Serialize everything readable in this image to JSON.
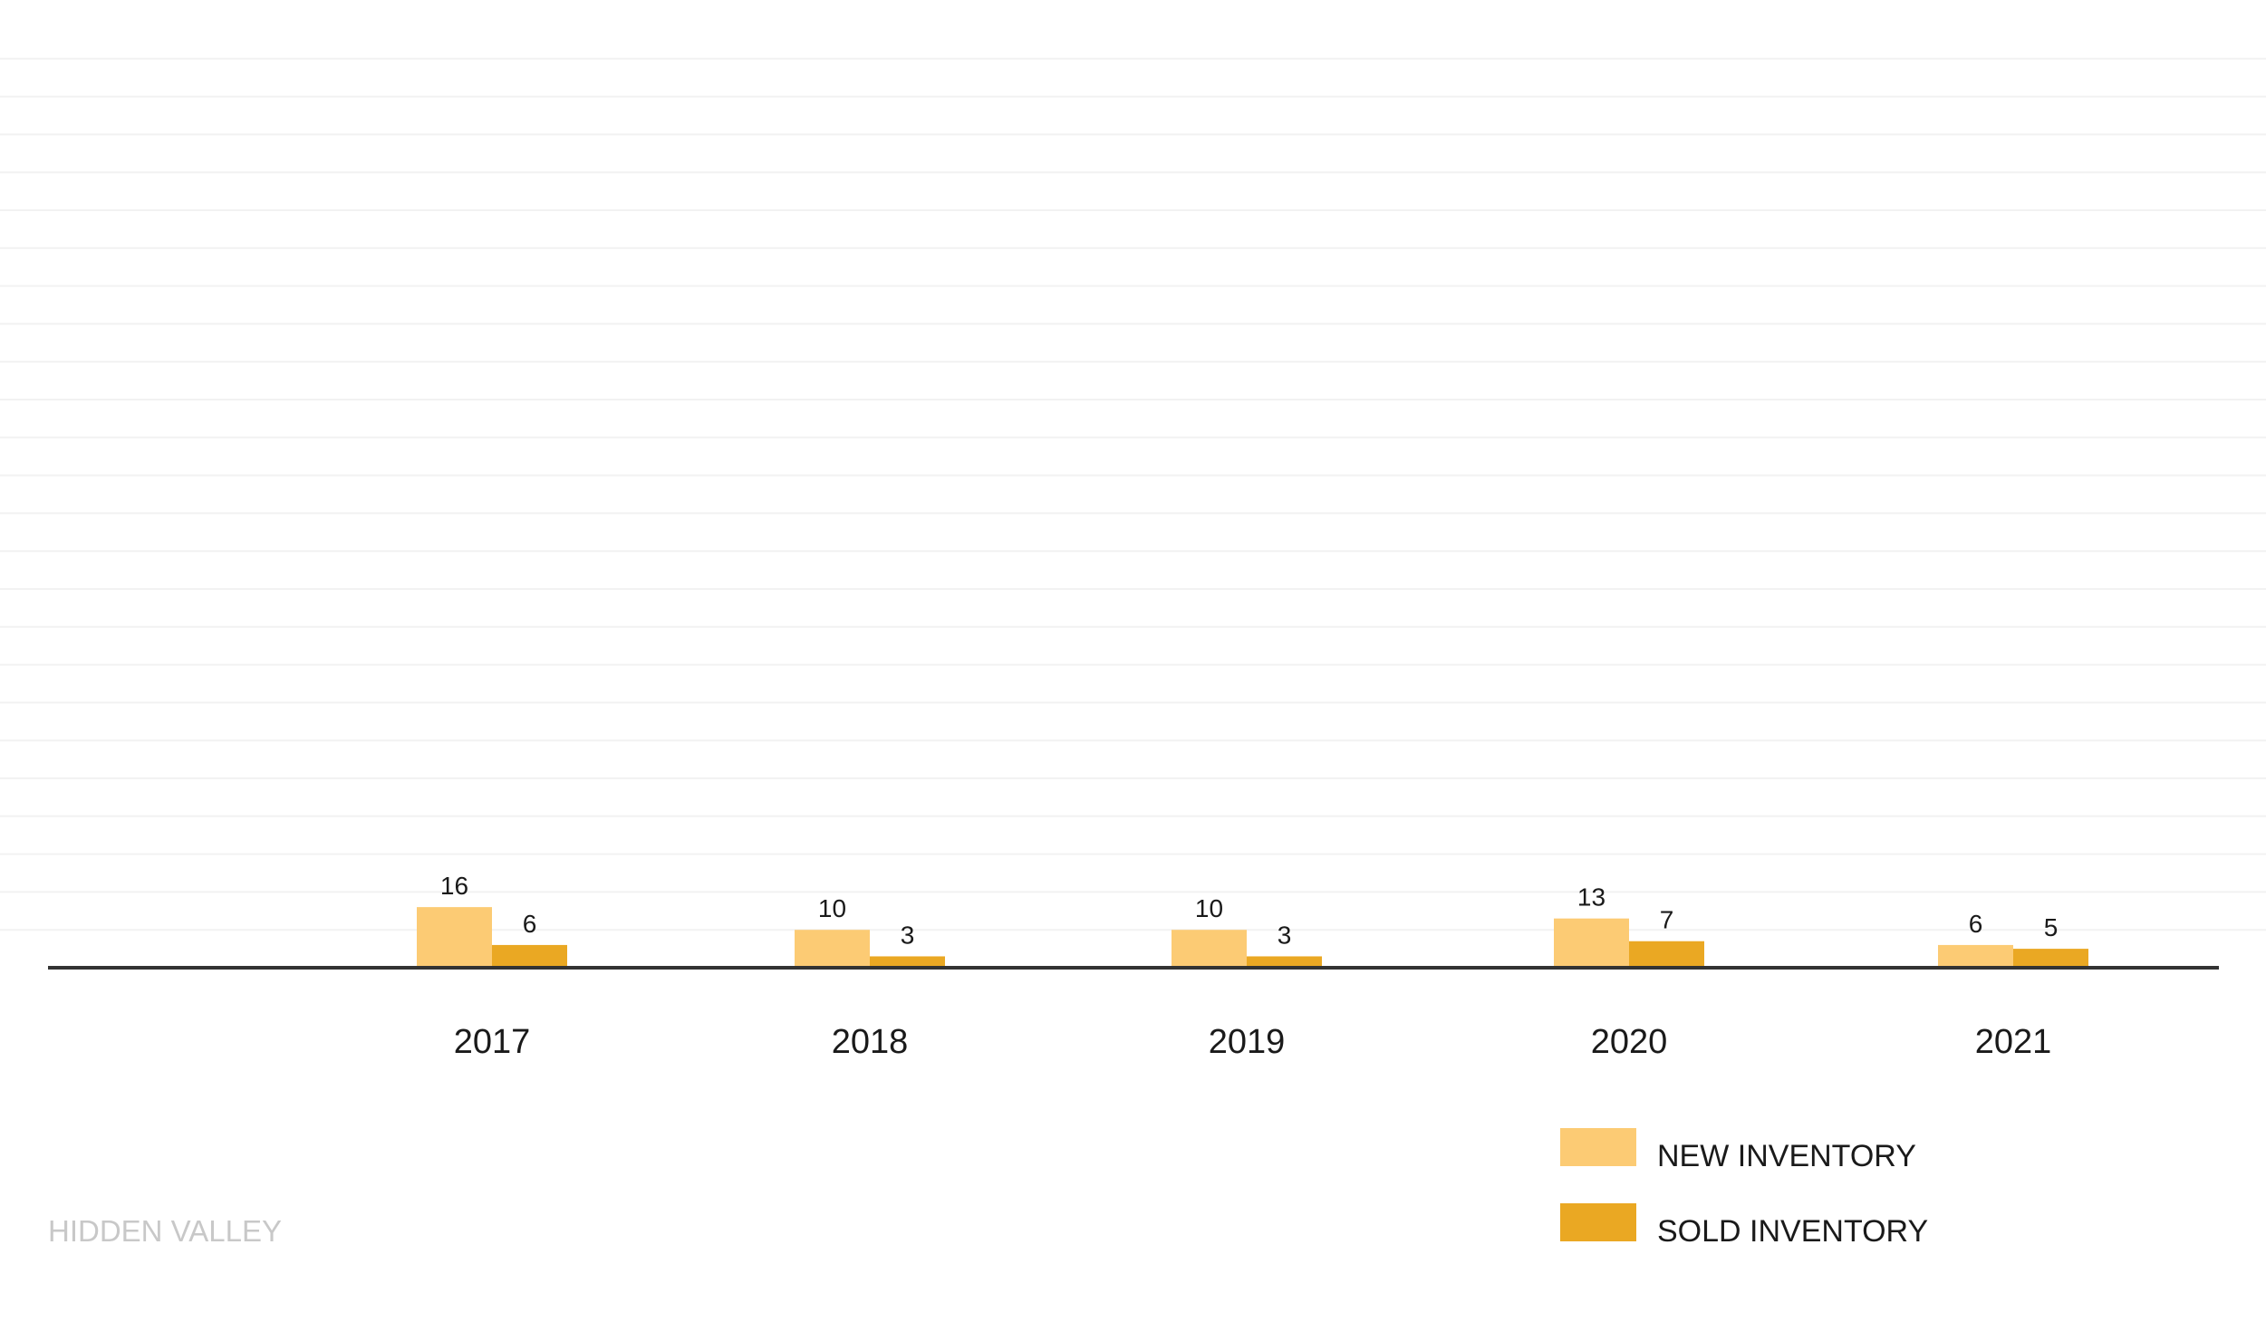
{
  "footer": {
    "label": "HIDDEN VALLEY"
  },
  "colors": {
    "new_inventory": "#fccb74",
    "sold_inventory": "#eaa823",
    "baseline": "#333333",
    "grid": "#f2f2f2",
    "footer_text": "#c8c8c8"
  },
  "chart_data": {
    "type": "bar",
    "categories": [
      "2017",
      "2018",
      "2019",
      "2020",
      "2021"
    ],
    "series": [
      {
        "name": "NEW INVENTORY",
        "values": [
          16,
          10,
          10,
          13,
          6
        ]
      },
      {
        "name": "SOLD INVENTORY",
        "values": [
          6,
          3,
          3,
          7,
          5
        ]
      }
    ],
    "ylim": [
      0,
      250
    ],
    "grid": true,
    "legend_position": "bottom-right"
  }
}
